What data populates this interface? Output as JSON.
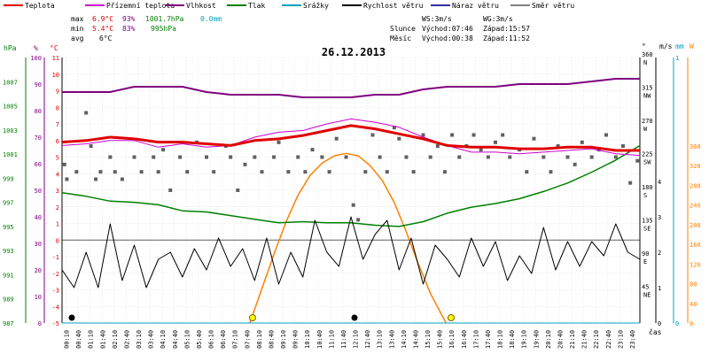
{
  "legend": [
    {
      "label": "Teplota",
      "color": "#e00000"
    },
    {
      "label": "Přízemní teplota",
      "color": "#cc00cc"
    },
    {
      "label": "Vlhkost",
      "color": "#800080"
    },
    {
      "label": "Tlak",
      "color": "#008000"
    },
    {
      "label": "Srážky",
      "color": "#00a0c0"
    },
    {
      "label": "Rychlost větru",
      "color": "#000000"
    },
    {
      "label": "Náraz větru",
      "color": "#3030a0"
    },
    {
      "label": "Směr větru",
      "color": "#808080"
    }
  ],
  "stats": {
    "max_label": "max",
    "min_label": "min",
    "avg_label": "avg",
    "max_temp": "6.9°C",
    "max_hum": "93%",
    "max_press": "1001.7hPa",
    "max_rain": "0.0mm",
    "min_temp": "5.4°C",
    "min_hum": "83%",
    "min_press": "995hPa",
    "avg_temp": "6°C"
  },
  "info": {
    "ws": "WS:3m/s",
    "wg": "WG:3m/s",
    "sun_label": "Slunce",
    "sunrise": "Východ:07:46",
    "sunset": "Západ:15:57",
    "moon_label": "Měsíc",
    "moonrise": "Východ:00:38",
    "moonset": "Západ:11:52"
  },
  "date": "26.12.2013",
  "axis_labels": {
    "hpa": "hPa",
    "pct": "%",
    "degc": "°C",
    "deg": "°",
    "ms": "m/s",
    "mm": "mm",
    "w": "W",
    "time": "čas"
  },
  "colors": {
    "temp": "#e00000",
    "ground": "#cc00cc",
    "hum": "#800080",
    "press": "#008000",
    "wind": "#000000",
    "dir": "#606060",
    "sun": "#ff8000",
    "rain": "#00a0c0"
  },
  "chart_data": {
    "type": "line",
    "title": "26.12.2013",
    "xlabel": "čas",
    "x_range": [
      "00:00",
      "24:00"
    ],
    "x_ticks": [
      "00:10",
      "00:40",
      "01:10",
      "01:40",
      "02:10",
      "02:40",
      "03:10",
      "03:40",
      "04:10",
      "04:40",
      "05:10",
      "05:40",
      "06:10",
      "06:40",
      "07:10",
      "07:40",
      "08:10",
      "08:40",
      "09:10",
      "09:40",
      "10:10",
      "10:40",
      "11:10",
      "11:40",
      "12:10",
      "12:40",
      "13:10",
      "13:40",
      "14:10",
      "14:40",
      "15:10",
      "15:40",
      "16:10",
      "16:40",
      "17:10",
      "17:40",
      "18:10",
      "18:40",
      "19:10",
      "19:40",
      "20:10",
      "20:40",
      "21:10",
      "21:40",
      "22:10",
      "22:40",
      "23:10",
      "23:40"
    ],
    "axes": {
      "pressure_hPa": {
        "range": [
          987,
          1009
        ],
        "ticks": [
          "987",
          "989",
          "991",
          "993",
          "995",
          "997",
          "999",
          "1001",
          "1003",
          "1005",
          "1007"
        ]
      },
      "humidity_pct": {
        "range": [
          0,
          100
        ],
        "ticks": [
          "0",
          "10",
          "20",
          "30",
          "40",
          "50",
          "60",
          "70",
          "80",
          "90",
          "100"
        ]
      },
      "temperature_C": {
        "range": [
          -5,
          11
        ],
        "ticks": [
          "-5",
          "-4",
          "-3",
          "-2",
          "-1",
          "0",
          "1",
          "2",
          "3",
          "4",
          "5",
          "6",
          "7",
          "8",
          "9",
          "10",
          "11"
        ]
      },
      "wind_dir_deg": {
        "range": [
          0,
          360
        ],
        "ticks": [
          {
            "deg": "45",
            "dir": "NE"
          },
          {
            "deg": "90",
            "dir": "E"
          },
          {
            "deg": "135",
            "dir": "SE"
          },
          {
            "deg": "180",
            "dir": "S"
          },
          {
            "deg": "225",
            "dir": "SW"
          },
          {
            "deg": "270",
            "dir": "W"
          },
          {
            "deg": "315",
            "dir": "NW"
          },
          {
            "deg": "360",
            "dir": "N"
          }
        ]
      },
      "wind_ms": {
        "ticks": [
          "0",
          "1",
          "2",
          "3",
          "4"
        ]
      },
      "rain_mm": {
        "ticks": [
          "0",
          "1"
        ]
      },
      "solar_W": {
        "range": [
          0,
          360
        ],
        "ticks": [
          "0",
          "40",
          "80",
          "120",
          "160",
          "200",
          "240",
          "280",
          "320",
          "360"
        ]
      }
    },
    "series": [
      {
        "name": "Teplota",
        "unit": "°C",
        "points": [
          [
            0,
            5.9
          ],
          [
            1,
            6.0
          ],
          [
            2,
            6.2
          ],
          [
            3,
            6.1
          ],
          [
            4,
            5.9
          ],
          [
            5,
            5.9
          ],
          [
            6,
            5.8
          ],
          [
            7,
            5.7
          ],
          [
            8,
            6.0
          ],
          [
            9,
            6.1
          ],
          [
            10,
            6.3
          ],
          [
            11,
            6.6
          ],
          [
            12,
            6.9
          ],
          [
            13,
            6.7
          ],
          [
            14,
            6.4
          ],
          [
            15,
            6.1
          ],
          [
            16,
            5.7
          ],
          [
            17,
            5.6
          ],
          [
            18,
            5.6
          ],
          [
            19,
            5.5
          ],
          [
            20,
            5.5
          ],
          [
            21,
            5.6
          ],
          [
            22,
            5.6
          ],
          [
            23,
            5.4
          ],
          [
            24,
            5.4
          ]
        ]
      },
      {
        "name": "Přízemní teplota",
        "unit": "°C",
        "points": [
          [
            0,
            5.7
          ],
          [
            1,
            5.8
          ],
          [
            2,
            6.0
          ],
          [
            3,
            6.0
          ],
          [
            4,
            5.6
          ],
          [
            5,
            5.8
          ],
          [
            6,
            5.6
          ],
          [
            7,
            5.7
          ],
          [
            8,
            6.2
          ],
          [
            9,
            6.5
          ],
          [
            10,
            6.6
          ],
          [
            11,
            7.0
          ],
          [
            12,
            7.3
          ],
          [
            13,
            7.1
          ],
          [
            14,
            6.8
          ],
          [
            15,
            6.2
          ],
          [
            16,
            5.7
          ],
          [
            17,
            5.3
          ],
          [
            18,
            5.3
          ],
          [
            19,
            5.2
          ],
          [
            20,
            5.3
          ],
          [
            21,
            5.4
          ],
          [
            22,
            5.5
          ],
          [
            23,
            5.2
          ],
          [
            24,
            5.1
          ]
        ]
      },
      {
        "name": "Vlhkost",
        "unit": "%",
        "points": [
          [
            0,
            87
          ],
          [
            1,
            87
          ],
          [
            2,
            87
          ],
          [
            3,
            89
          ],
          [
            4,
            89
          ],
          [
            5,
            89
          ],
          [
            6,
            87
          ],
          [
            7,
            86
          ],
          [
            8,
            86
          ],
          [
            9,
            86
          ],
          [
            10,
            85
          ],
          [
            11,
            85
          ],
          [
            12,
            85
          ],
          [
            13,
            86
          ],
          [
            14,
            86
          ],
          [
            15,
            88
          ],
          [
            16,
            89
          ],
          [
            17,
            89
          ],
          [
            18,
            89
          ],
          [
            19,
            90
          ],
          [
            20,
            90
          ],
          [
            21,
            90
          ],
          [
            22,
            91
          ],
          [
            23,
            92
          ],
          [
            24,
            92
          ]
        ]
      },
      {
        "name": "Tlak",
        "unit": "hPa",
        "points": [
          [
            0,
            997.8
          ],
          [
            1,
            997.5
          ],
          [
            2,
            997.1
          ],
          [
            3,
            997.0
          ],
          [
            4,
            996.8
          ],
          [
            5,
            996.3
          ],
          [
            6,
            996.2
          ],
          [
            7,
            995.9
          ],
          [
            8,
            995.6
          ],
          [
            9,
            995.3
          ],
          [
            10,
            995.4
          ],
          [
            11,
            995.3
          ],
          [
            12,
            995.3
          ],
          [
            13,
            995.1
          ],
          [
            14,
            995.0
          ],
          [
            15,
            995.4
          ],
          [
            16,
            996.1
          ],
          [
            17,
            996.6
          ],
          [
            18,
            996.9
          ],
          [
            19,
            997.3
          ],
          [
            20,
            997.9
          ],
          [
            21,
            998.6
          ],
          [
            22,
            999.5
          ],
          [
            23,
            1000.5
          ],
          [
            24,
            1001.7
          ]
        ]
      },
      {
        "name": "Rychlost větru",
        "unit": "m/s",
        "points": [
          [
            0,
            1.5
          ],
          [
            0.5,
            1.0
          ],
          [
            1,
            2.0
          ],
          [
            1.5,
            1.0
          ],
          [
            2,
            2.8
          ],
          [
            2.5,
            1.2
          ],
          [
            3,
            2.2
          ],
          [
            3.5,
            1.0
          ],
          [
            4,
            1.8
          ],
          [
            4.5,
            2.0
          ],
          [
            5,
            1.3
          ],
          [
            5.5,
            2.1
          ],
          [
            6,
            1.5
          ],
          [
            6.5,
            2.4
          ],
          [
            7,
            1.6
          ],
          [
            7.5,
            2.1
          ],
          [
            8,
            1.2
          ],
          [
            8.5,
            2.4
          ],
          [
            9,
            1.1
          ],
          [
            9.5,
            2.0
          ],
          [
            10,
            1.3
          ],
          [
            10.5,
            2.9
          ],
          [
            11,
            2.0
          ],
          [
            11.5,
            1.6
          ],
          [
            12,
            3.0
          ],
          [
            12.5,
            1.8
          ],
          [
            13,
            2.5
          ],
          [
            13.5,
            2.9
          ],
          [
            14,
            1.5
          ],
          [
            14.5,
            2.4
          ],
          [
            15,
            1.1
          ],
          [
            15.5,
            2.2
          ],
          [
            16,
            1.8
          ],
          [
            16.5,
            1.3
          ],
          [
            17,
            2.4
          ],
          [
            17.5,
            1.6
          ],
          [
            18,
            2.3
          ],
          [
            18.5,
            1.2
          ],
          [
            19,
            1.9
          ],
          [
            19.5,
            1.4
          ],
          [
            20,
            2.7
          ],
          [
            20.5,
            1.5
          ],
          [
            21,
            2.3
          ],
          [
            21.5,
            1.6
          ],
          [
            22,
            2.3
          ],
          [
            22.5,
            1.9
          ],
          [
            23,
            2.8
          ],
          [
            23.5,
            2.0
          ],
          [
            24,
            1.8
          ]
        ]
      },
      {
        "name": "Směr větru",
        "unit": "°",
        "points": [
          [
            0.1,
            215
          ],
          [
            0.2,
            195
          ],
          [
            0.6,
            205
          ],
          [
            1.0,
            285
          ],
          [
            1.2,
            240
          ],
          [
            1.4,
            195
          ],
          [
            1.6,
            205
          ],
          [
            2.0,
            225
          ],
          [
            2.2,
            205
          ],
          [
            2.5,
            195
          ],
          [
            3.0,
            225
          ],
          [
            3.3,
            205
          ],
          [
            3.8,
            225
          ],
          [
            4.0,
            205
          ],
          [
            4.2,
            235
          ],
          [
            4.5,
            180
          ],
          [
            4.9,
            225
          ],
          [
            5.2,
            205
          ],
          [
            5.6,
            245
          ],
          [
            6.0,
            225
          ],
          [
            6.3,
            205
          ],
          [
            6.8,
            240
          ],
          [
            7.0,
            225
          ],
          [
            7.3,
            180
          ],
          [
            7.6,
            215
          ],
          [
            8.0,
            225
          ],
          [
            8.3,
            205
          ],
          [
            8.8,
            225
          ],
          [
            9.0,
            245
          ],
          [
            9.4,
            205
          ],
          [
            9.8,
            225
          ],
          [
            10.1,
            205
          ],
          [
            10.4,
            235
          ],
          [
            10.8,
            225
          ],
          [
            11.1,
            205
          ],
          [
            11.4,
            250
          ],
          [
            11.8,
            225
          ],
          [
            12.1,
            160
          ],
          [
            12.3,
            140
          ],
          [
            12.6,
            205
          ],
          [
            12.9,
            255
          ],
          [
            13.2,
            225
          ],
          [
            13.5,
            205
          ],
          [
            13.8,
            265
          ],
          [
            14.0,
            250
          ],
          [
            14.3,
            225
          ],
          [
            14.6,
            205
          ],
          [
            15.0,
            255
          ],
          [
            15.3,
            225
          ],
          [
            15.6,
            240
          ],
          [
            15.9,
            205
          ],
          [
            16.2,
            255
          ],
          [
            16.5,
            225
          ],
          [
            16.8,
            240
          ],
          [
            17.1,
            255
          ],
          [
            17.4,
            235
          ],
          [
            17.7,
            225
          ],
          [
            18.0,
            245
          ],
          [
            18.3,
            255
          ],
          [
            18.6,
            225
          ],
          [
            19.0,
            235
          ],
          [
            19.3,
            205
          ],
          [
            19.6,
            250
          ],
          [
            20.0,
            225
          ],
          [
            20.3,
            205
          ],
          [
            20.6,
            240
          ],
          [
            21.0,
            225
          ],
          [
            21.3,
            215
          ],
          [
            21.6,
            245
          ],
          [
            22.0,
            225
          ],
          [
            22.3,
            235
          ],
          [
            22.6,
            255
          ],
          [
            23.0,
            225
          ],
          [
            23.3,
            240
          ],
          [
            23.6,
            190
          ],
          [
            23.9,
            220
          ]
        ]
      },
      {
        "name": "Sluneční záření",
        "unit": "W",
        "points": [
          [
            7.8,
            0
          ],
          [
            8.3,
            70
          ],
          [
            8.8,
            140
          ],
          [
            9.3,
            205
          ],
          [
            9.8,
            260
          ],
          [
            10.3,
            300
          ],
          [
            10.8,
            325
          ],
          [
            11.3,
            340
          ],
          [
            11.8,
            345
          ],
          [
            12.3,
            340
          ],
          [
            12.8,
            320
          ],
          [
            13.3,
            290
          ],
          [
            13.8,
            245
          ],
          [
            14.3,
            185
          ],
          [
            14.8,
            120
          ],
          [
            15.3,
            60
          ],
          [
            15.95,
            0
          ]
        ]
      },
      {
        "name": "Srážky",
        "unit": "mm",
        "points": [
          [
            0,
            0
          ],
          [
            24,
            0
          ]
        ]
      }
    ]
  }
}
